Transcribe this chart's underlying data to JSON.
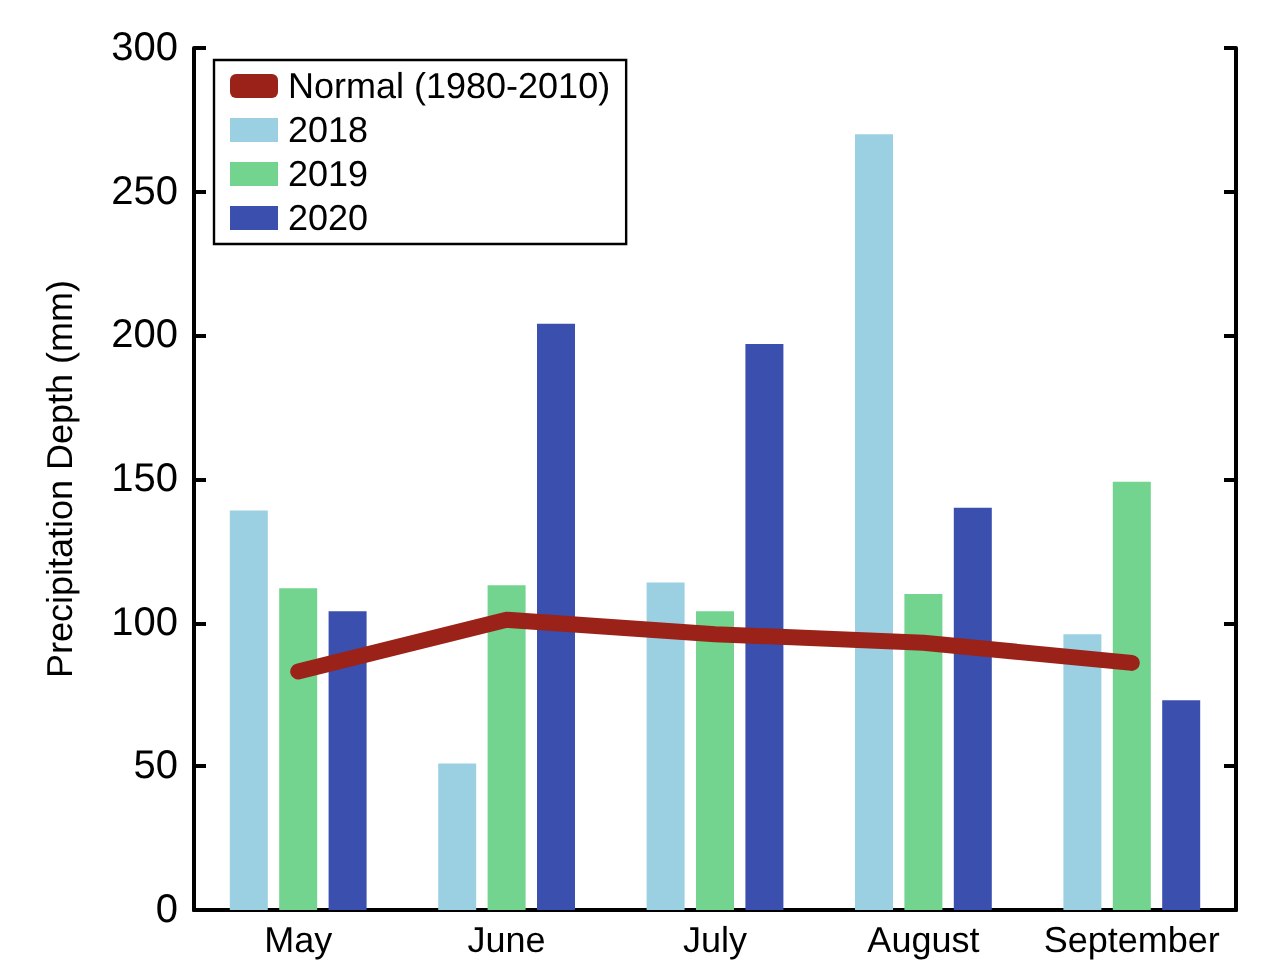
{
  "chart_data": {
    "type": "bar",
    "ylabel": "Precipitation Depth (mm)",
    "categories": [
      "May",
      "June",
      "July",
      "August",
      "September"
    ],
    "series": [
      {
        "name": "Normal (1980-2010)",
        "type": "line",
        "color": "#9b2218",
        "values": [
          83,
          101,
          96,
          93,
          86
        ]
      },
      {
        "name": "2018",
        "color": "#9bd0e2",
        "values": [
          139,
          51,
          114,
          270,
          96
        ]
      },
      {
        "name": "2019",
        "color": "#72d48e",
        "values": [
          112,
          113,
          104,
          110,
          149
        ]
      },
      {
        "name": "2020",
        "color": "#3b4fae",
        "values": [
          104,
          204,
          197,
          140,
          73
        ]
      }
    ],
    "ylim": [
      0,
      300
    ],
    "yticks": [
      0,
      50,
      100,
      150,
      200,
      250,
      300
    ],
    "grid": false,
    "legend": "top left"
  }
}
